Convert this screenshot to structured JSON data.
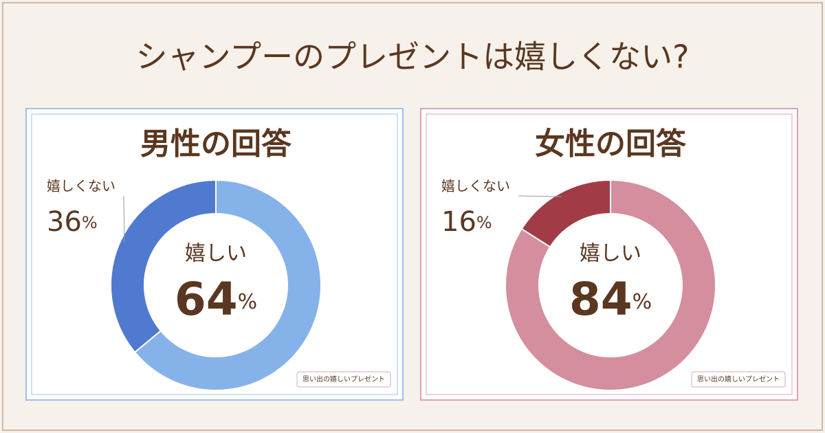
{
  "title": "シャンプーのプレゼントは嬉しくない?",
  "chart_data": [
    {
      "type": "pie",
      "donut": true,
      "title": "男性の回答",
      "categories": [
        "嬉しい",
        "嬉しくない"
      ],
      "values": [
        64,
        36
      ],
      "value_labels": [
        "64%",
        "36%"
      ],
      "colors": [
        "#86b2ea",
        "#5079d0"
      ],
      "frame_color": "#9cc0e8",
      "watermark": "思い出の嬉しいプレゼント"
    },
    {
      "type": "pie",
      "donut": true,
      "title": "女性の回答",
      "categories": [
        "嬉しい",
        "嬉しくない"
      ],
      "values": [
        84,
        16
      ],
      "value_labels": [
        "84%",
        "16%"
      ],
      "colors": [
        "#d48e9e",
        "#a13c46"
      ],
      "frame_color": "#d9a3b0",
      "watermark": "思い出の嬉しいプレゼント"
    }
  ]
}
